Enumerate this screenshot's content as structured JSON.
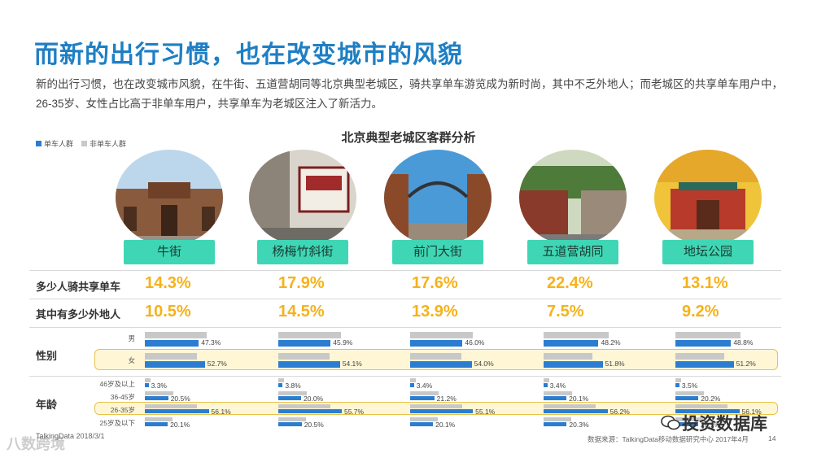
{
  "title": "而新的出行习惯，也在改变城市的风貌",
  "description": "新的出行习惯，也在改变城市风貌，在牛街、五道营胡同等北京典型老城区，骑共享单车游览成为新时尚，其中不乏外地人；而老城区的共享单车用户中，26-35岁、女性占比高于非单车用户，共享单车为老城区注入了新活力。",
  "legend": [
    {
      "label": "单车人群",
      "color": "#2a7dd1"
    },
    {
      "label": "非单车人群",
      "color": "#c8c8c8"
    }
  ],
  "footer": {
    "left": "TalkingData 2018/3/1",
    "source": "数据来源：TalkingData移动数据研究中心 2017年4月",
    "page": "14",
    "watermark_left": "八数跨境",
    "watermark_right": "投资数据库"
  },
  "chart_data": {
    "type": "bar",
    "title": "北京典型老城区客群分析",
    "categories": [
      "牛街",
      "杨梅竹斜街",
      "前门大街",
      "五道营胡同",
      "地坛公园"
    ],
    "metrics": [
      {
        "label": "多少人骑共享单车",
        "values": [
          "14.3%",
          "17.9%",
          "17.6%",
          "22.4%",
          "13.1%"
        ]
      },
      {
        "label": "其中有多少外地人",
        "values": [
          "10.5%",
          "14.5%",
          "13.9%",
          "7.5%",
          "9.2%"
        ]
      }
    ],
    "groups": [
      {
        "label": "性别",
        "rows": [
          {
            "label": "男",
            "highlight": false,
            "blue": [
              47.3,
              45.9,
              46.0,
              48.2,
              48.8
            ],
            "grey": [
              54,
              55,
              55,
              57,
              57
            ]
          },
          {
            "label": "女",
            "highlight": true,
            "blue": [
              52.7,
              54.1,
              54.0,
              51.8,
              51.2
            ],
            "grey": [
              46,
              45,
              45,
              43,
              43
            ]
          }
        ]
      },
      {
        "label": "年龄",
        "rows": [
          {
            "label": "46岁及以上",
            "highlight": false,
            "blue": [
              3.3,
              3.8,
              3.4,
              3.4,
              3.5
            ],
            "grey": [
              5,
              5,
              5,
              5,
              5
            ]
          },
          {
            "label": "36-45岁",
            "highlight": false,
            "blue": [
              20.5,
              20.0,
              21.2,
              20.1,
              20.2
            ],
            "grey": [
              25,
              25,
              25,
              25,
              25
            ]
          },
          {
            "label": "26-35岁",
            "highlight": true,
            "blue": [
              56.1,
              55.7,
              55.1,
              56.2,
              56.1
            ],
            "grey": [
              46,
              46,
              46,
              46,
              46
            ]
          },
          {
            "label": "25岁及以下",
            "highlight": false,
            "blue": [
              20.1,
              20.5,
              20.1,
              20.3,
              20.1
            ],
            "grey": [
              24,
              24,
              24,
              24,
              24
            ]
          }
        ]
      }
    ]
  }
}
